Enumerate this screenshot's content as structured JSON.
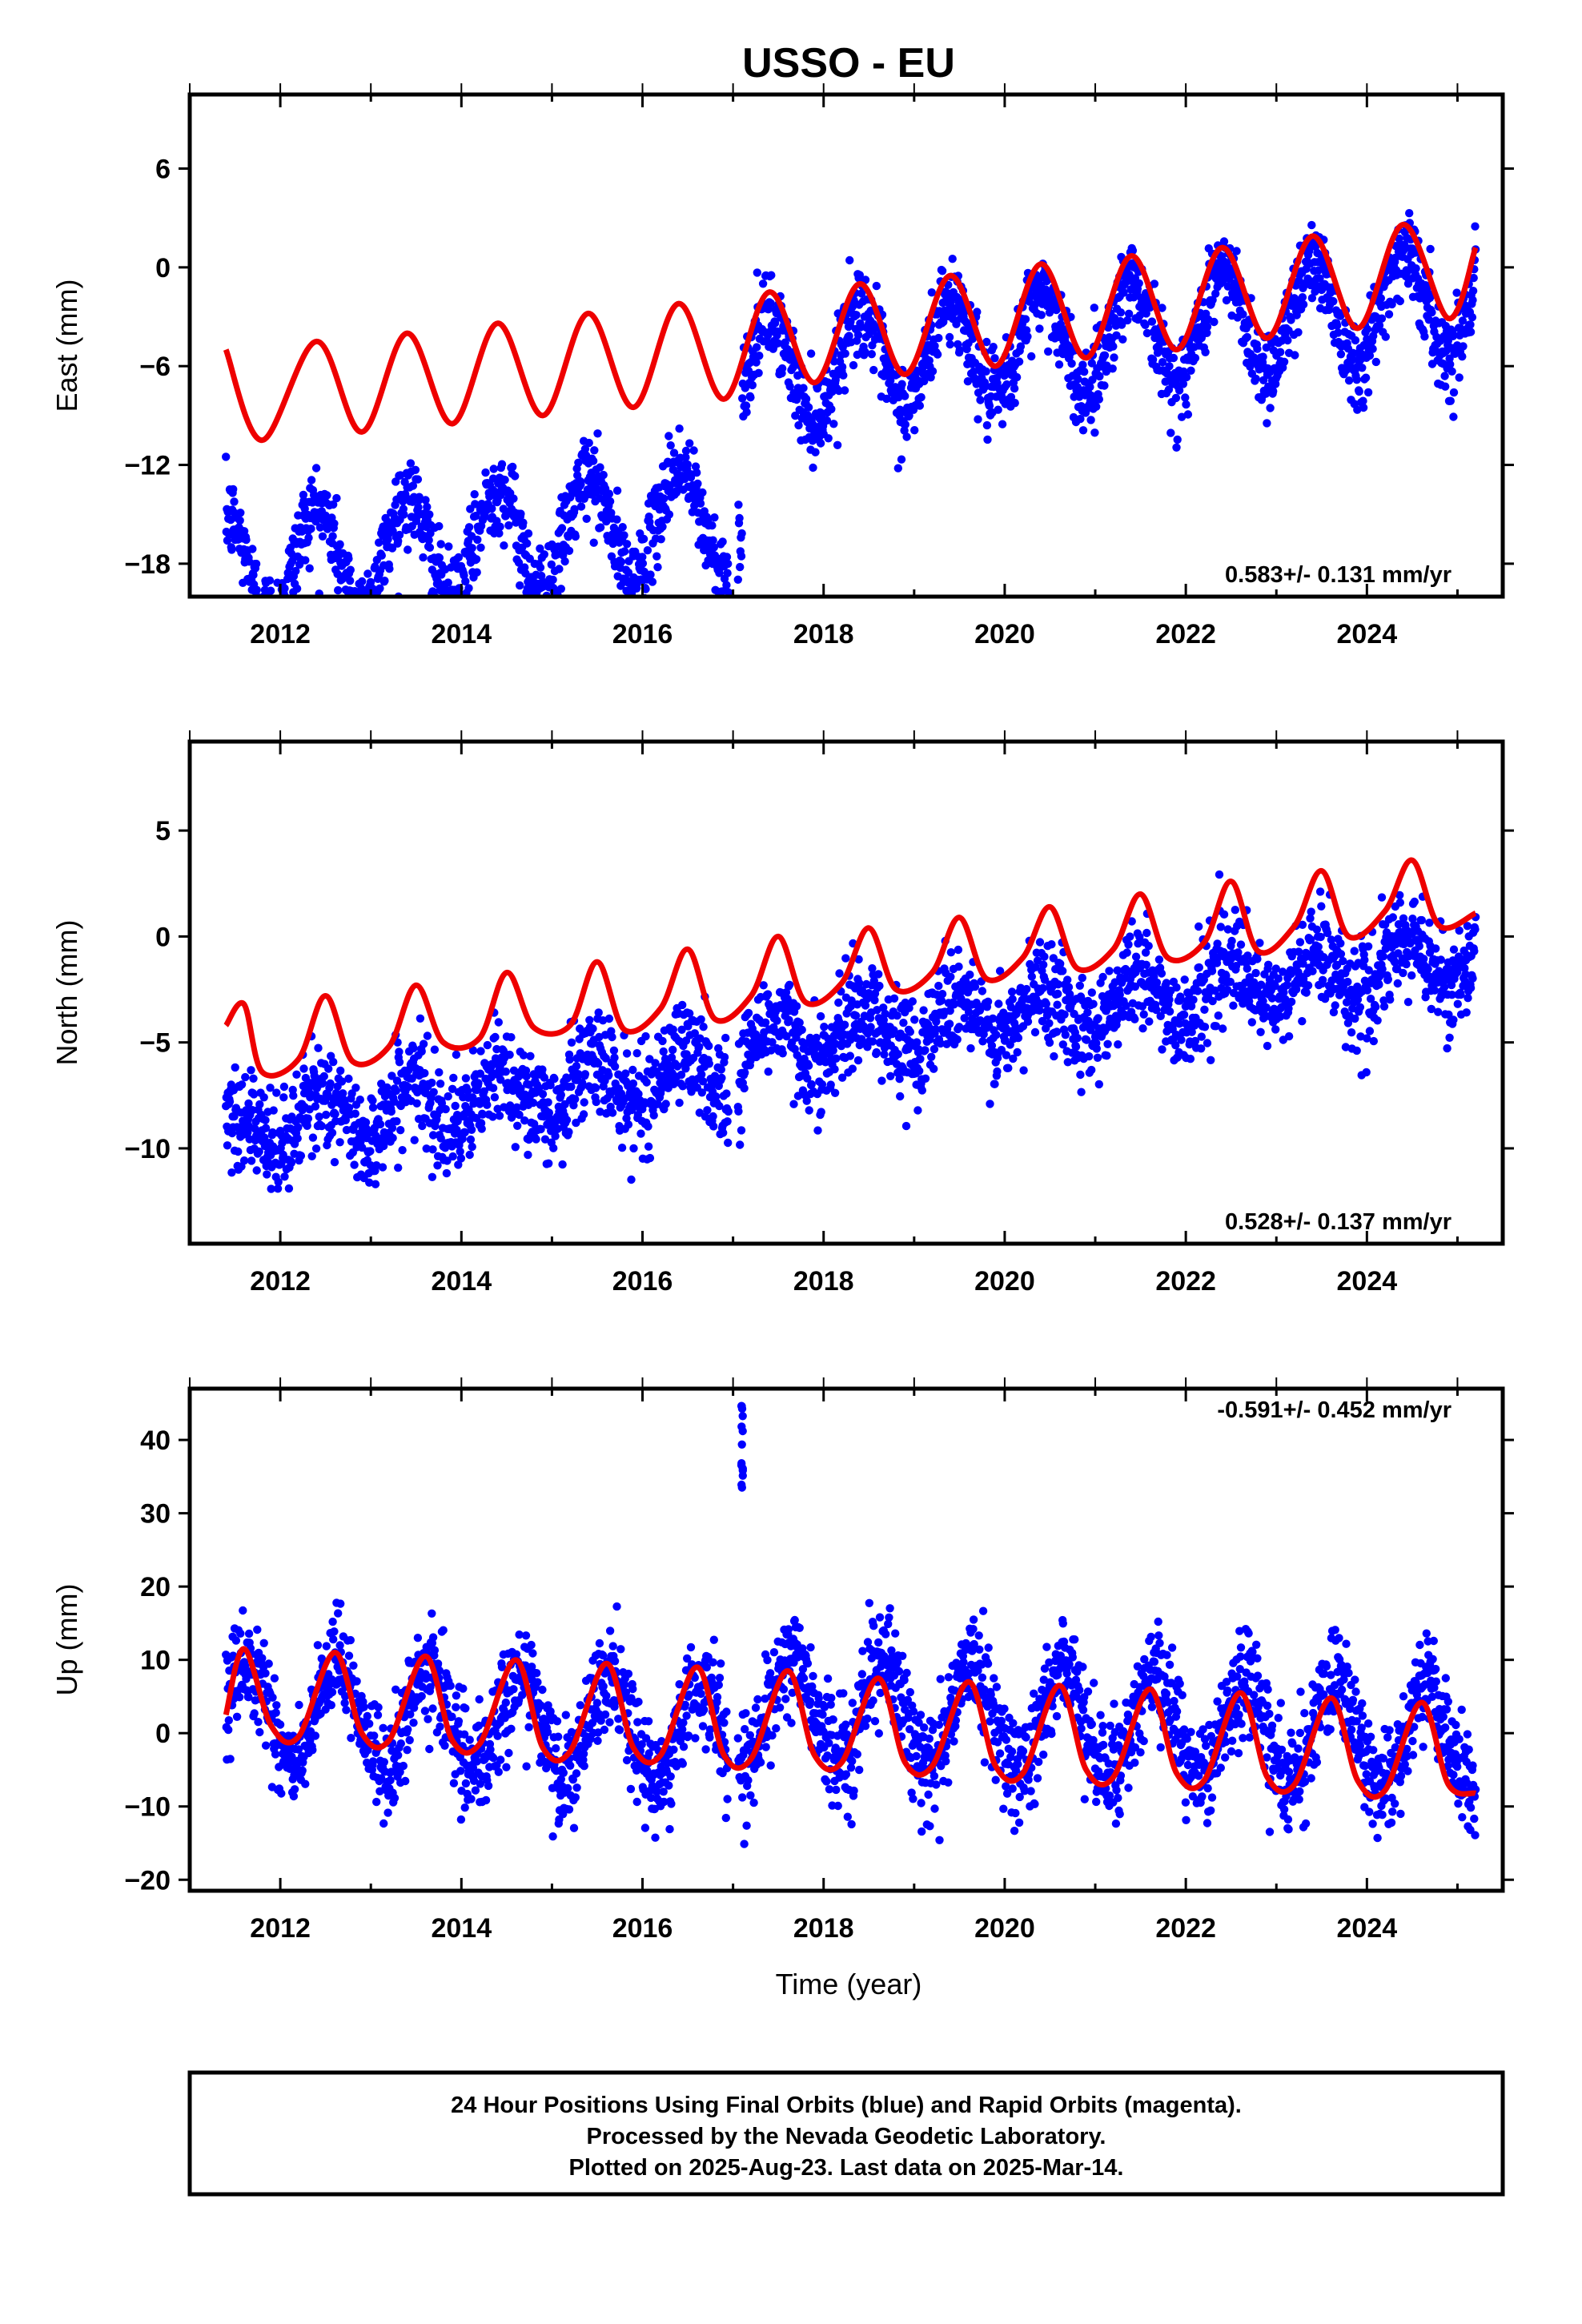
{
  "title": "USSO - EU",
  "x_axis_label": "Time (year)",
  "footer": {
    "line1": "24 Hour Positions Using Final Orbits (blue) and Rapid Orbits (magenta).",
    "line2": "Processed by the Nevada Geodetic Laboratory.",
    "line3": "Plotted on 2025-Aug-23. Last data on 2025-Mar-14."
  },
  "colors": {
    "points": "#0000ff",
    "model": "#ee0000",
    "frame": "#000000"
  },
  "chart_data": [
    {
      "type": "scatter",
      "ylabel": "East (mm)",
      "xlim": [
        2011.0,
        2025.5
      ],
      "ylim": [
        -20,
        10.5
      ],
      "xticks": [
        2012,
        2014,
        2016,
        2018,
        2020,
        2022,
        2024
      ],
      "yticks": [
        6,
        0,
        -6,
        -12,
        -18
      ],
      "annotation": "0.583+/- 0.131 mm/yr",
      "data_range": [
        2011.4,
        2025.2
      ],
      "observed_points": {
        "description_keys": [
          "offset_before",
          "offset_after",
          "step_epoch",
          "annual_amplitude",
          "annual_peak_phase",
          "noise_sd"
        ],
        "offset_before": -16.8,
        "offset_after": -4.2,
        "step_epoch": 2017.1,
        "trend_mm_per_yr": 0.583,
        "annual_amplitude": 3.2,
        "annual_peak_phase": 0.4,
        "noise_sd": 1.3
      },
      "model_curve": [
        [
          2011.4,
          -5.0
        ],
        [
          2011.8,
          -10.5
        ],
        [
          2012.4,
          -4.5
        ],
        [
          2012.9,
          -10.0
        ],
        [
          2013.4,
          -4.0
        ],
        [
          2013.9,
          -9.5
        ],
        [
          2014.4,
          -3.4
        ],
        [
          2014.9,
          -9.0
        ],
        [
          2015.4,
          -2.8
        ],
        [
          2015.9,
          -8.5
        ],
        [
          2016.4,
          -2.2
        ],
        [
          2016.9,
          -8.0
        ],
        [
          2017.4,
          -1.5
        ],
        [
          2017.9,
          -7.0
        ],
        [
          2018.4,
          -1.0
        ],
        [
          2018.9,
          -6.5
        ],
        [
          2019.4,
          -0.5
        ],
        [
          2019.9,
          -6.0
        ],
        [
          2020.4,
          0.2
        ],
        [
          2020.9,
          -5.5
        ],
        [
          2021.4,
          0.7
        ],
        [
          2021.9,
          -5.0
        ],
        [
          2022.4,
          1.2
        ],
        [
          2022.9,
          -4.3
        ],
        [
          2023.4,
          1.9
        ],
        [
          2023.9,
          -3.7
        ],
        [
          2024.4,
          2.6
        ],
        [
          2024.9,
          -3.1
        ],
        [
          2025.2,
          1.2
        ]
      ]
    },
    {
      "type": "scatter",
      "ylabel": "North (mm)",
      "xlim": [
        2011.0,
        2025.5
      ],
      "ylim": [
        -14.5,
        9.2
      ],
      "xticks": [
        2012,
        2014,
        2016,
        2018,
        2020,
        2022,
        2024
      ],
      "yticks": [
        5,
        0,
        -5,
        -10
      ],
      "annotation": "0.528+/- 0.137 mm/yr",
      "data_range": [
        2011.4,
        2025.2
      ],
      "observed_points": {
        "offset_before": -7.8,
        "offset_after": -3.2,
        "step_epoch": 2017.1,
        "trend_mm_per_yr": 0.528,
        "annual_amplitude": 1.2,
        "annual_peak_phase": 0.45,
        "noise_sd": 1.2
      },
      "model_curve": [
        [
          2011.4,
          -4.2
        ],
        [
          2011.6,
          -3.2
        ],
        [
          2011.8,
          -6.4
        ],
        [
          2012.2,
          -5.8
        ],
        [
          2012.5,
          -2.8
        ],
        [
          2012.8,
          -5.9
        ],
        [
          2013.2,
          -5.2
        ],
        [
          2013.5,
          -2.3
        ],
        [
          2013.8,
          -5.0
        ],
        [
          2014.2,
          -4.8
        ],
        [
          2014.5,
          -1.7
        ],
        [
          2014.8,
          -4.3
        ],
        [
          2015.2,
          -4.2
        ],
        [
          2015.5,
          -1.2
        ],
        [
          2015.8,
          -4.4
        ],
        [
          2016.2,
          -3.4
        ],
        [
          2016.5,
          -0.6
        ],
        [
          2016.8,
          -3.9
        ],
        [
          2017.2,
          -2.8
        ],
        [
          2017.5,
          0.0
        ],
        [
          2017.8,
          -3.1
        ],
        [
          2018.2,
          -2.2
        ],
        [
          2018.5,
          0.4
        ],
        [
          2018.8,
          -2.5
        ],
        [
          2019.2,
          -1.7
        ],
        [
          2019.5,
          0.9
        ],
        [
          2019.8,
          -2.0
        ],
        [
          2020.2,
          -1.0
        ],
        [
          2020.5,
          1.4
        ],
        [
          2020.8,
          -1.5
        ],
        [
          2021.2,
          -0.6
        ],
        [
          2021.5,
          2.0
        ],
        [
          2021.8,
          -1.0
        ],
        [
          2022.2,
          -0.3
        ],
        [
          2022.5,
          2.6
        ],
        [
          2022.8,
          -0.7
        ],
        [
          2023.2,
          0.5
        ],
        [
          2023.5,
          3.1
        ],
        [
          2023.8,
          0.0
        ],
        [
          2024.2,
          1.2
        ],
        [
          2024.5,
          3.6
        ],
        [
          2024.8,
          0.5
        ],
        [
          2025.2,
          1.1
        ]
      ]
    },
    {
      "type": "scatter",
      "ylabel": "Up (mm)",
      "xlim": [
        2011.0,
        2025.5
      ],
      "ylim": [
        -21.5,
        47
      ],
      "xticks": [
        2012,
        2014,
        2016,
        2018,
        2020,
        2022,
        2024
      ],
      "yticks": [
        40,
        30,
        20,
        10,
        0,
        -10,
        -20
      ],
      "annotation": "-0.591+/- 0.452 mm/yr",
      "data_range": [
        2011.4,
        2025.2
      ],
      "observed_points": {
        "offset_before": 1.5,
        "offset_after": 1.5,
        "step_epoch": 2017.1,
        "trend_mm_per_yr": -0.591,
        "annual_amplitude": 7.0,
        "annual_peak_phase": 0.65,
        "noise_sd": 3.5,
        "outlier_cluster": {
          "x": 2017.1,
          "y_range": [
            33,
            45
          ]
        }
      },
      "model_curve": [
        [
          2011.4,
          2.5
        ],
        [
          2011.6,
          11.5
        ],
        [
          2011.9,
          1.0
        ],
        [
          2012.2,
          -0.5
        ],
        [
          2012.6,
          11.0
        ],
        [
          2012.9,
          0.0
        ],
        [
          2013.2,
          -1.0
        ],
        [
          2013.6,
          10.5
        ],
        [
          2013.9,
          -1.0
        ],
        [
          2014.2,
          -1.5
        ],
        [
          2014.6,
          10.0
        ],
        [
          2014.9,
          -2.0
        ],
        [
          2015.2,
          -2.5
        ],
        [
          2015.6,
          9.5
        ],
        [
          2015.9,
          -2.0
        ],
        [
          2016.2,
          -3.0
        ],
        [
          2016.6,
          9.0
        ],
        [
          2016.9,
          -3.0
        ],
        [
          2017.2,
          -3.5
        ],
        [
          2017.6,
          8.5
        ],
        [
          2017.9,
          -3.0
        ],
        [
          2018.2,
          -4.0
        ],
        [
          2018.6,
          7.5
        ],
        [
          2018.9,
          -4.0
        ],
        [
          2019.2,
          -4.5
        ],
        [
          2019.6,
          7.0
        ],
        [
          2019.9,
          -4.5
        ],
        [
          2020.2,
          -5.5
        ],
        [
          2020.6,
          6.5
        ],
        [
          2020.9,
          -5.0
        ],
        [
          2021.2,
          -6.0
        ],
        [
          2021.6,
          6.0
        ],
        [
          2021.9,
          -5.5
        ],
        [
          2022.2,
          -6.5
        ],
        [
          2022.6,
          5.5
        ],
        [
          2022.9,
          -6.0
        ],
        [
          2023.2,
          -7.0
        ],
        [
          2023.6,
          4.8
        ],
        [
          2023.9,
          -6.5
        ],
        [
          2024.2,
          -7.8
        ],
        [
          2024.6,
          4.2
        ],
        [
          2024.9,
          -7.0
        ],
        [
          2025.2,
          -8.2
        ]
      ]
    }
  ]
}
